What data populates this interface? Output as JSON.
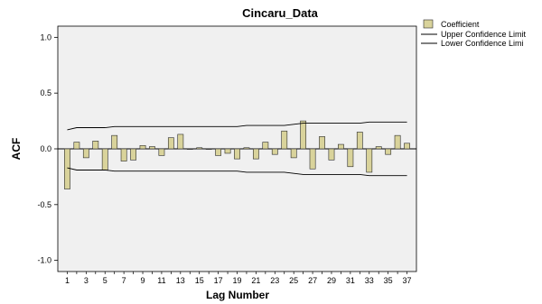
{
  "chart_data": {
    "type": "bar",
    "title": "Cincaru_Data",
    "xlabel": "Lag Number",
    "ylabel": "ACF",
    "ylim": [
      -1.1,
      1.1
    ],
    "yticks": [
      1.0,
      0.5,
      0.0,
      -0.5,
      -1.0
    ],
    "ytick_labels": [
      "1.0",
      "0.5",
      "0.0",
      "-0.5",
      "-1.0"
    ],
    "xlim": [
      0,
      38
    ],
    "xtick_labels": [
      "1",
      "3",
      "5",
      "7",
      "9",
      "11",
      "13",
      "15",
      "17",
      "19",
      "21",
      "23",
      "25",
      "27",
      "29",
      "31",
      "33",
      "35",
      "37"
    ],
    "lags": [
      1,
      2,
      3,
      4,
      5,
      6,
      7,
      8,
      9,
      10,
      11,
      12,
      13,
      14,
      15,
      16,
      17,
      18,
      19,
      20,
      21,
      22,
      23,
      24,
      25,
      26,
      27,
      28,
      29,
      30,
      31,
      32,
      33,
      34,
      35,
      36,
      37
    ],
    "legend": {
      "placement": "top-right",
      "coefficient": "Coefficient",
      "upper": "Upper Confidence Limit",
      "lower": "Lower Confidence Limi"
    },
    "series": [
      {
        "name": "Coefficient",
        "values": [
          -0.36,
          0.06,
          -0.08,
          0.07,
          -0.19,
          0.12,
          -0.11,
          -0.1,
          0.03,
          0.02,
          -0.06,
          0.1,
          0.13,
          0.0,
          0.01,
          0.0,
          -0.06,
          -0.04,
          -0.09,
          0.01,
          -0.09,
          0.06,
          -0.05,
          0.16,
          -0.08,
          0.25,
          -0.18,
          0.11,
          -0.1,
          0.04,
          -0.16,
          0.15,
          -0.21,
          0.02,
          -0.05,
          0.12,
          0.05
        ]
      },
      {
        "name": "Upper Confidence Limit",
        "values": [
          0.17,
          0.19,
          0.19,
          0.19,
          0.19,
          0.2,
          0.2,
          0.2,
          0.2,
          0.2,
          0.2,
          0.2,
          0.2,
          0.2,
          0.2,
          0.2,
          0.2,
          0.2,
          0.2,
          0.21,
          0.21,
          0.21,
          0.21,
          0.21,
          0.22,
          0.23,
          0.23,
          0.23,
          0.23,
          0.23,
          0.23,
          0.23,
          0.24,
          0.24,
          0.24,
          0.24,
          0.24
        ]
      },
      {
        "name": "Lower Confidence Limi",
        "values": [
          -0.17,
          -0.19,
          -0.19,
          -0.19,
          -0.19,
          -0.2,
          -0.2,
          -0.2,
          -0.2,
          -0.2,
          -0.2,
          -0.2,
          -0.2,
          -0.2,
          -0.2,
          -0.2,
          -0.2,
          -0.2,
          -0.2,
          -0.21,
          -0.21,
          -0.21,
          -0.21,
          -0.21,
          -0.22,
          -0.23,
          -0.23,
          -0.23,
          -0.23,
          -0.23,
          -0.23,
          -0.23,
          -0.24,
          -0.24,
          -0.24,
          -0.24,
          -0.24
        ]
      }
    ],
    "colors": {
      "bar_fill": "#d9d39b",
      "bar_stroke": "#2a2a2a",
      "plot_bg": "#f0f0f0",
      "line": "#000000"
    }
  }
}
